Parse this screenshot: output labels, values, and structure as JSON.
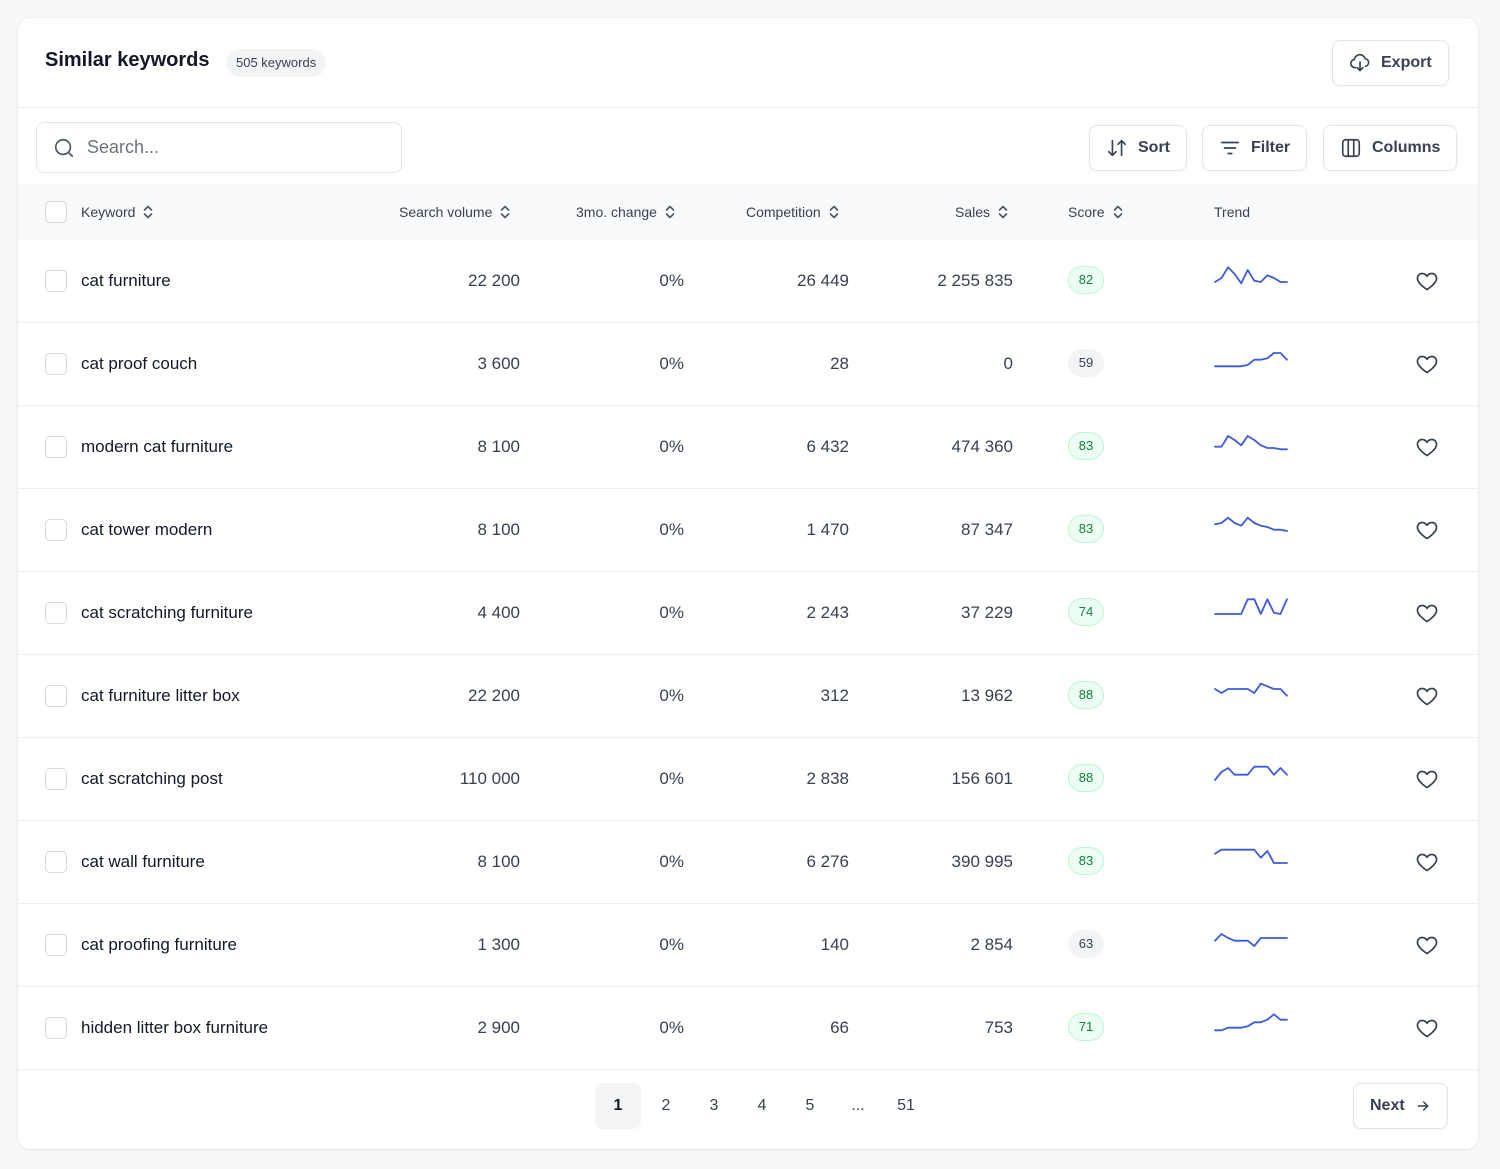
{
  "header": {
    "title": "Similar keywords",
    "count_badge": "505 keywords",
    "export_label": "Export"
  },
  "toolbar": {
    "search_placeholder": "Search...",
    "sort_label": "Sort",
    "filter_label": "Filter",
    "columns_label": "Columns"
  },
  "table": {
    "columns": {
      "keyword": "Keyword",
      "search_volume": "Search volume",
      "change": "3mo. change",
      "competition": "Competition",
      "sales": "Sales",
      "score": "Score",
      "trend": "Trend"
    },
    "rows": [
      {
        "keyword": "cat furniture",
        "search_volume": "22 200",
        "change": "0%",
        "competition": "26 449",
        "sales": "2 255 835",
        "score": "82",
        "score_tone": "green",
        "trend": [
          3,
          6,
          14,
          9,
          2,
          12,
          4,
          3,
          8,
          6,
          3,
          3
        ]
      },
      {
        "keyword": "cat proof couch",
        "search_volume": "3 600",
        "change": "0%",
        "competition": "28",
        "sales": "0",
        "score": "59",
        "score_tone": "gray",
        "trend": [
          2,
          2,
          2,
          2,
          2,
          3,
          7,
          7,
          8,
          12,
          12,
          7
        ]
      },
      {
        "keyword": "modern cat furniture",
        "search_volume": "8 100",
        "change": "0%",
        "competition": "6 432",
        "sales": "474 360",
        "score": "83",
        "score_tone": "green",
        "trend": [
          4,
          4,
          12,
          9,
          5,
          12,
          9,
          5,
          3,
          3,
          2,
          2
        ]
      },
      {
        "keyword": "cat tower modern",
        "search_volume": "8 100",
        "change": "0%",
        "competition": "1 470",
        "sales": "87 347",
        "score": "83",
        "score_tone": "green",
        "trend": [
          8,
          9,
          13,
          9,
          7,
          13,
          9,
          7,
          6,
          4,
          4,
          3
        ]
      },
      {
        "keyword": "cat scratching furniture",
        "search_volume": "4 400",
        "change": "0%",
        "competition": "2 243",
        "sales": "37 229",
        "score": "74",
        "score_tone": "green",
        "trend": [
          3,
          3,
          3,
          3,
          3,
          14,
          14,
          3,
          14,
          4,
          3,
          14
        ]
      },
      {
        "keyword": "cat furniture litter box",
        "search_volume": "22 200",
        "change": "0%",
        "competition": "312",
        "sales": "13 962",
        "score": "88",
        "score_tone": "green",
        "trend": [
          9,
          6,
          9,
          9,
          9,
          9,
          6,
          13,
          11,
          9,
          9,
          4
        ]
      },
      {
        "keyword": "cat scratching post",
        "search_volume": "110 000",
        "change": "0%",
        "competition": "2 838",
        "sales": "156 601",
        "score": "88",
        "score_tone": "green",
        "trend": [
          3,
          9,
          12,
          7,
          7,
          7,
          13,
          13,
          13,
          7,
          12,
          7
        ]
      },
      {
        "keyword": "cat wall furniture",
        "search_volume": "8 100",
        "change": "0%",
        "competition": "6 276",
        "sales": "390 995",
        "score": "83",
        "score_tone": "green",
        "trend": [
          10,
          13,
          13,
          13,
          13,
          13,
          13,
          7,
          12,
          3,
          3,
          3
        ]
      },
      {
        "keyword": "cat proofing furniture",
        "search_volume": "1 300",
        "change": "0%",
        "competition": "140",
        "sales": "2 854",
        "score": "63",
        "score_tone": "gray",
        "trend": [
          7,
          12,
          9,
          7,
          7,
          7,
          3,
          9,
          9,
          9,
          9,
          9
        ]
      },
      {
        "keyword": "hidden litter box furniture",
        "search_volume": "2 900",
        "change": "0%",
        "competition": "66",
        "sales": "753",
        "score": "71",
        "score_tone": "green",
        "trend": [
          2,
          2,
          4,
          4,
          4,
          5,
          8,
          8,
          10,
          14,
          10,
          10
        ]
      }
    ]
  },
  "pagination": {
    "pages": [
      "1",
      "2",
      "3",
      "4",
      "5",
      "...",
      "51"
    ],
    "active_page": "1",
    "next_label": "Next"
  },
  "colors": {
    "trend_line": "#3b5bdb",
    "score_green_bg": "#ecfdf3",
    "score_green_border": "#bbf7d0",
    "score_green_text": "#15803d",
    "score_gray_bg": "#f3f4f6",
    "score_gray_border": "#f3f4f6",
    "score_gray_text": "#374151"
  }
}
